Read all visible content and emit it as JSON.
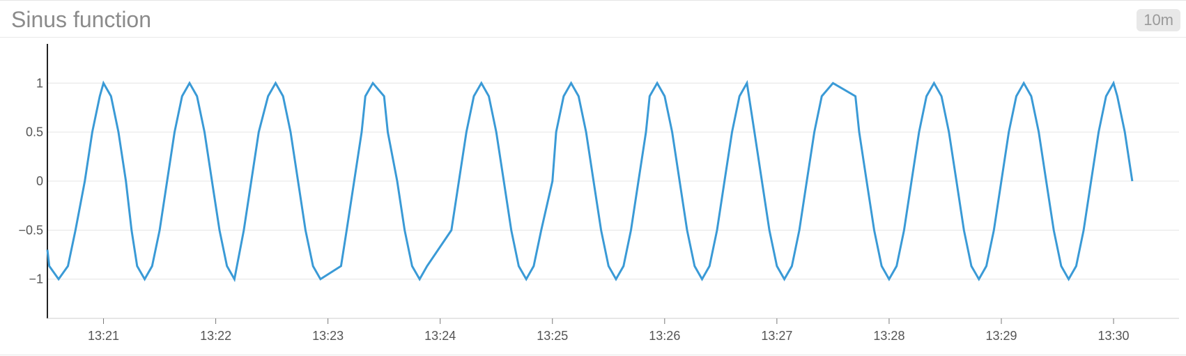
{
  "header": {
    "title": "Sinus function",
    "range_label": "10m"
  },
  "colors": {
    "line": "#3a9ad6",
    "grid": "#e4e4e4",
    "axis": "#222222",
    "tick_text": "#555555"
  },
  "chart_data": {
    "type": "line",
    "title": "Sinus function",
    "xlabel": "",
    "ylabel": "",
    "x_unit": "time (HH:MM, fractional minutes)",
    "xlim": [
      "13:20:30",
      "13:30:35"
    ],
    "ylim": [
      -1.4,
      1.4
    ],
    "grid": true,
    "y_ticks": [
      {
        "value": 1,
        "label": "1"
      },
      {
        "value": 0.5,
        "label": "0.5"
      },
      {
        "value": 0,
        "label": "0"
      },
      {
        "value": -0.5,
        "label": "−0.5"
      },
      {
        "value": -1,
        "label": "−1"
      }
    ],
    "x_ticks": [
      {
        "value": "13:21",
        "label": "13:21"
      },
      {
        "value": "13:22",
        "label": "13:22"
      },
      {
        "value": "13:23",
        "label": "13:23"
      },
      {
        "value": "13:24",
        "label": "13:24"
      },
      {
        "value": "13:25",
        "label": "13:25"
      },
      {
        "value": "13:26",
        "label": "13:26"
      },
      {
        "value": "13:27",
        "label": "13:27"
      },
      {
        "value": "13:28",
        "label": "13:28"
      },
      {
        "value": "13:29",
        "label": "13:29"
      },
      {
        "value": "13:30",
        "label": "13:30"
      }
    ],
    "series": [
      {
        "points": [
          [
            "13:20:30",
            -0.7
          ],
          [
            "13:20:31",
            -0.866
          ],
          [
            "13:20:36",
            -1
          ],
          [
            "13:20:41",
            -0.866
          ],
          [
            "13:20:45",
            -0.5
          ],
          [
            "13:20:50",
            0
          ],
          [
            "13:20:54",
            0.5
          ],
          [
            "13:20:58",
            0.866
          ],
          [
            "13:21:00",
            1
          ],
          [
            "13:21:04",
            0.866
          ],
          [
            "13:21:08",
            0.5
          ],
          [
            "13:21:12",
            0
          ],
          [
            "13:21:15",
            -0.5
          ],
          [
            "13:21:18",
            -0.866
          ],
          [
            "13:21:22",
            -1
          ],
          [
            "13:21:26",
            -0.866
          ],
          [
            "13:21:30",
            -0.5
          ],
          [
            "13:21:34",
            0
          ],
          [
            "13:21:38",
            0.5
          ],
          [
            "13:21:42",
            0.866
          ],
          [
            "13:21:46",
            1
          ],
          [
            "13:21:50",
            0.866
          ],
          [
            "13:21:54",
            0.5
          ],
          [
            "13:21:58",
            0
          ],
          [
            "13:22:02",
            -0.5
          ],
          [
            "13:22:06",
            -0.866
          ],
          [
            "13:22:10",
            -1
          ],
          [
            "13:22:15",
            -0.5
          ],
          [
            "13:22:19",
            0
          ],
          [
            "13:22:23",
            0.5
          ],
          [
            "13:22:28",
            0.866
          ],
          [
            "13:22:32",
            1
          ],
          [
            "13:22:36",
            0.866
          ],
          [
            "13:22:40",
            0.5
          ],
          [
            "13:22:44",
            0
          ],
          [
            "13:22:48",
            -0.5
          ],
          [
            "13:22:52",
            -0.866
          ],
          [
            "13:22:56",
            -1
          ],
          [
            "13:23:07",
            -0.866
          ],
          [
            "13:23:10",
            -0.5
          ],
          [
            "13:23:18",
            0.5
          ],
          [
            "13:23:20",
            0.866
          ],
          [
            "13:23:24",
            1
          ],
          [
            "13:23:30",
            0.866
          ],
          [
            "13:23:32",
            0.5
          ],
          [
            "13:23:37",
            0
          ],
          [
            "13:23:41",
            -0.5
          ],
          [
            "13:23:45",
            -0.866
          ],
          [
            "13:23:49",
            -1
          ],
          [
            "13:23:53",
            -0.866
          ],
          [
            "13:24:06",
            -0.5
          ],
          [
            "13:24:14",
            0.5
          ],
          [
            "13:24:18",
            0.866
          ],
          [
            "13:24:22",
            1
          ],
          [
            "13:24:26",
            0.866
          ],
          [
            "13:24:30",
            0.5
          ],
          [
            "13:24:34",
            0
          ],
          [
            "13:24:38",
            -0.5
          ],
          [
            "13:24:42",
            -0.866
          ],
          [
            "13:24:46",
            -1
          ],
          [
            "13:24:50",
            -0.866
          ],
          [
            "13:24:54",
            -0.5
          ],
          [
            "13:25:00",
            0
          ],
          [
            "13:25:02",
            0.5
          ],
          [
            "13:25:06",
            0.866
          ],
          [
            "13:25:10",
            1
          ],
          [
            "13:25:14",
            0.866
          ],
          [
            "13:25:18",
            0.5
          ],
          [
            "13:25:22",
            0
          ],
          [
            "13:25:26",
            -0.5
          ],
          [
            "13:25:30",
            -0.866
          ],
          [
            "13:25:34",
            -1
          ],
          [
            "13:25:38",
            -0.866
          ],
          [
            "13:25:42",
            -0.5
          ],
          [
            "13:25:46",
            0
          ],
          [
            "13:25:50",
            0.5
          ],
          [
            "13:25:52",
            0.866
          ],
          [
            "13:25:56",
            1
          ],
          [
            "13:26:00",
            0.866
          ],
          [
            "13:26:04",
            0.5
          ],
          [
            "13:26:08",
            0
          ],
          [
            "13:26:12",
            -0.5
          ],
          [
            "13:26:16",
            -0.866
          ],
          [
            "13:26:20",
            -1
          ],
          [
            "13:26:24",
            -0.866
          ],
          [
            "13:26:28",
            -0.5
          ],
          [
            "13:26:32",
            0
          ],
          [
            "13:26:36",
            0.5
          ],
          [
            "13:26:40",
            0.866
          ],
          [
            "13:26:44",
            1
          ],
          [
            "13:26:48",
            0.5
          ],
          [
            "13:26:52",
            0
          ],
          [
            "13:26:56",
            -0.5
          ],
          [
            "13:27:00",
            -0.866
          ],
          [
            "13:27:04",
            -1
          ],
          [
            "13:27:08",
            -0.866
          ],
          [
            "13:27:12",
            -0.5
          ],
          [
            "13:27:16",
            0
          ],
          [
            "13:27:20",
            0.5
          ],
          [
            "13:27:24",
            0.866
          ],
          [
            "13:27:30",
            1
          ],
          [
            "13:27:42",
            0.866
          ],
          [
            "13:27:44",
            0.5
          ],
          [
            "13:27:48",
            0
          ],
          [
            "13:27:52",
            -0.5
          ],
          [
            "13:27:56",
            -0.866
          ],
          [
            "13:28:00",
            -1
          ],
          [
            "13:28:04",
            -0.866
          ],
          [
            "13:28:08",
            -0.5
          ],
          [
            "13:28:12",
            0
          ],
          [
            "13:28:16",
            0.5
          ],
          [
            "13:28:20",
            0.866
          ],
          [
            "13:28:24",
            1
          ],
          [
            "13:28:28",
            0.866
          ],
          [
            "13:28:32",
            0.5
          ],
          [
            "13:28:36",
            0
          ],
          [
            "13:28:40",
            -0.5
          ],
          [
            "13:28:44",
            -0.866
          ],
          [
            "13:28:48",
            -1
          ],
          [
            "13:28:52",
            -0.866
          ],
          [
            "13:28:56",
            -0.5
          ],
          [
            "13:29:00",
            0
          ],
          [
            "13:29:04",
            0.5
          ],
          [
            "13:29:08",
            0.866
          ],
          [
            "13:29:12",
            1
          ],
          [
            "13:29:16",
            0.866
          ],
          [
            "13:29:20",
            0.5
          ],
          [
            "13:29:24",
            0
          ],
          [
            "13:29:28",
            -0.5
          ],
          [
            "13:29:32",
            -0.866
          ],
          [
            "13:29:36",
            -1
          ],
          [
            "13:29:40",
            -0.866
          ],
          [
            "13:29:44",
            -0.5
          ],
          [
            "13:29:48",
            0
          ],
          [
            "13:29:52",
            0.5
          ],
          [
            "13:29:56",
            0.866
          ],
          [
            "13:30:00",
            1
          ],
          [
            "13:30:02",
            0.866
          ],
          [
            "13:30:06",
            0.5
          ],
          [
            "13:30:10",
            0
          ]
        ]
      }
    ]
  }
}
